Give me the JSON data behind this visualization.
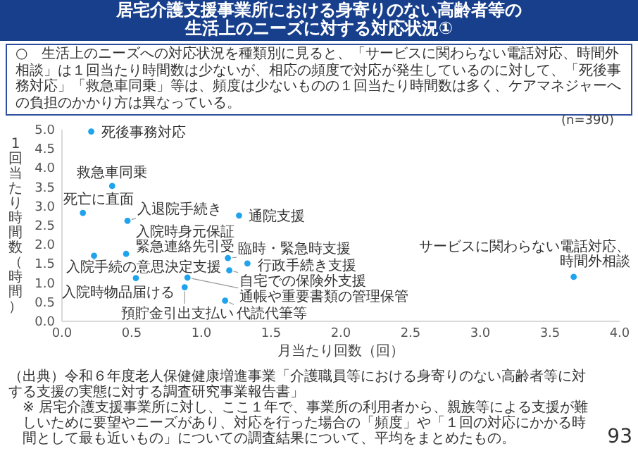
{
  "chart_data": {
    "type": "scatter",
    "title": "居宅介護支援事業所における身寄りのない高齢者等の生活上のニーズに対する対応状況①",
    "subtitle": "○　生活上のニーズへの対応状況を種類別に見ると、「サービスに関わらない電話対応、時間外相談」は１回当たり時間数は少ないが、相応の頻度で対応が発生しているのに対して、「死後事務対応」「救急車同乗」等は、頻度は少ないものの１回当たり時間数は多く、ケアマネジャーへの負担のかかり方は異なっている。",
    "xlabel": "月当たり回数（回）",
    "ylabel": "1回当たり時間数（時間）",
    "xlim": [
      0,
      4
    ],
    "ylim": [
      0,
      5
    ],
    "xticks": [
      {
        "value": 0,
        "label": "0.0"
      },
      {
        "value": 0.5,
        "label": "0.5"
      },
      {
        "value": 1,
        "label": "1.0"
      },
      {
        "value": 1.5,
        "label": "1.5"
      },
      {
        "value": 2,
        "label": "2.0"
      },
      {
        "value": 2.5,
        "label": "2.5"
      },
      {
        "value": 3,
        "label": "3.0"
      },
      {
        "value": 3.5,
        "label": "3.5"
      },
      {
        "value": 4,
        "label": "4.0"
      }
    ],
    "yticks": [
      {
        "value": 0,
        "label": "0.0"
      },
      {
        "value": 0.5,
        "label": "0.5"
      },
      {
        "value": 1,
        "label": "1.0"
      },
      {
        "value": 1.5,
        "label": "1.5"
      },
      {
        "value": 2,
        "label": "2.0"
      },
      {
        "value": 2.5,
        "label": "2.5"
      },
      {
        "value": 3,
        "label": "3.0"
      },
      {
        "value": 3.5,
        "label": "3.5"
      },
      {
        "value": 4,
        "label": "4.0"
      },
      {
        "value": 4.5,
        "label": "4.5"
      },
      {
        "value": 5,
        "label": "5.0"
      }
    ],
    "marker": "circle",
    "series": [
      {
        "name": "死後事務対応",
        "color": "#1fa3ec",
        "x": [
          0.21
        ],
        "values": [
          4.95
        ]
      },
      {
        "name": "救急車同乗",
        "color": "#1fa3ec",
        "x": [
          0.36
        ],
        "values": [
          3.53
        ]
      },
      {
        "name": "死亡に直面",
        "color": "#1fa3ec",
        "x": [
          0.15
        ],
        "values": [
          2.83
        ]
      },
      {
        "name": "入退院手続き",
        "color": "#1fa3ec",
        "x": [
          0.47
        ],
        "values": [
          2.62
        ]
      },
      {
        "name": "通院支援",
        "color": "#1fa3ec",
        "x": [
          1.27
        ],
        "values": [
          2.76
        ]
      },
      {
        "name": "入院時身元保証緊急連絡先引受",
        "color": "#1fa3ec",
        "x": [
          0.46
        ],
        "values": [
          1.76
        ]
      },
      {
        "name": "入院手続の意思決定支援",
        "color": "#1fa3ec",
        "x": [
          0.23
        ],
        "values": [
          1.71
        ]
      },
      {
        "name": "入院時物品届ける",
        "color": "#1fa3ec",
        "x": [
          0.53
        ],
        "values": [
          1.13
        ]
      },
      {
        "name": "臨時・緊急時支援",
        "color": "#1fa3ec",
        "x": [
          1.19
        ],
        "values": [
          1.65
        ]
      },
      {
        "name": "行政手続き支援",
        "color": "#1fa3ec",
        "x": [
          1.33
        ],
        "values": [
          1.51
        ]
      },
      {
        "name": "自宅での保険外支援",
        "color": "#1fa3ec",
        "x": [
          1.2
        ],
        "values": [
          1.33
        ]
      },
      {
        "name": "通帳や重要書類の管理保管",
        "color": "#1fa3ec",
        "x": [
          0.9
        ],
        "values": [
          1.14
        ]
      },
      {
        "name": "預貯金引出支払い",
        "color": "#1fa3ec",
        "x": [
          0.88
        ],
        "values": [
          0.89
        ]
      },
      {
        "name": "代読代筆等",
        "color": "#1fa3ec",
        "x": [
          1.17
        ],
        "values": [
          0.54
        ]
      },
      {
        "name": "サービスに関わらない電話対応、時間外相談",
        "color": "#1fa3ec",
        "x": [
          3.67
        ],
        "values": [
          1.16
        ]
      }
    ],
    "annotations": [
      "(n=390)",
      "（出典）令和６年度老人保健健康増進事業「介護職員等における身寄りのない高齢者等に対する支援の実態に対する調査研究事業報告書」",
      "※ 居宅介護支援事業所に対し、ここ１年で、事業所の利用者から、親族等による支援が難しいために要望やニーズがあり、対応を行った場合の「頻度」や「１回の対応にかかる時間として最も近いもの」についての調査結果について、平均をまとめたもの。",
      "93"
    ]
  }
}
